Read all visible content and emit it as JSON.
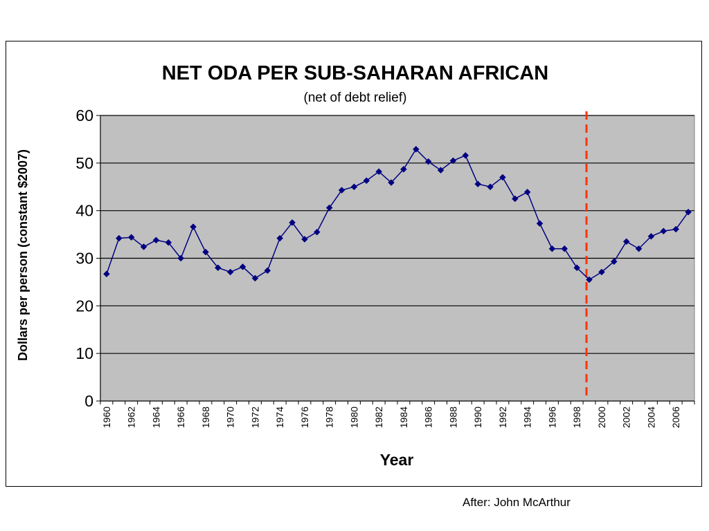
{
  "chart_data": {
    "type": "line",
    "title": "NET ODA PER SUB-SAHARAN AFRICAN",
    "subtitle": "(net of debt relief)",
    "xlabel": "Year",
    "ylabel": "Dollars per person (constant $2007)",
    "ylim": [
      0,
      60
    ],
    "xlim": [
      1960,
      2007
    ],
    "yticks": [
      "0",
      "10",
      "20",
      "30",
      "40",
      "50",
      "60"
    ],
    "xticks": [
      "1960",
      "1962",
      "1964",
      "1966",
      "1968",
      "1970",
      "1972",
      "1974",
      "1976",
      "1978",
      "1980",
      "1982",
      "1984",
      "1986",
      "1988",
      "1990",
      "1992",
      "1994",
      "1996",
      "1998",
      "2000",
      "2002",
      "2004",
      "2006"
    ],
    "grid": true,
    "plot_background": "#c0c0c0",
    "series": [
      {
        "color": "#000080",
        "marker": "diamond",
        "x": [
          1960,
          1961,
          1962,
          1963,
          1964,
          1965,
          1966,
          1967,
          1968,
          1969,
          1970,
          1971,
          1972,
          1973,
          1974,
          1975,
          1976,
          1977,
          1978,
          1979,
          1980,
          1981,
          1982,
          1983,
          1984,
          1985,
          1986,
          1987,
          1988,
          1989,
          1990,
          1991,
          1992,
          1993,
          1994,
          1995,
          1996,
          1997,
          1998,
          1999,
          2000,
          2001,
          2002,
          2003,
          2004,
          2005,
          2006,
          2007
        ],
        "values": [
          26.7,
          34.2,
          34.4,
          32.4,
          33.8,
          33.3,
          30.0,
          36.6,
          31.3,
          28.0,
          27.1,
          28.2,
          25.8,
          27.4,
          34.2,
          37.5,
          34.0,
          35.5,
          40.6,
          44.3,
          45.0,
          46.3,
          48.2,
          45.9,
          48.7,
          52.9,
          50.3,
          48.5,
          50.5,
          51.6,
          45.6,
          45.0,
          47.0,
          42.5,
          43.9,
          37.3,
          32.0,
          32.0,
          28.0,
          25.5,
          27.1,
          29.3,
          33.5,
          32.0,
          34.6,
          35.7,
          36.1,
          39.7
        ]
      }
    ],
    "annotations": [
      {
        "type": "vertical_dashed_line",
        "x": 1999,
        "color": "#ff3300"
      }
    ]
  },
  "footer": {
    "credit": "After: John McArthur"
  }
}
